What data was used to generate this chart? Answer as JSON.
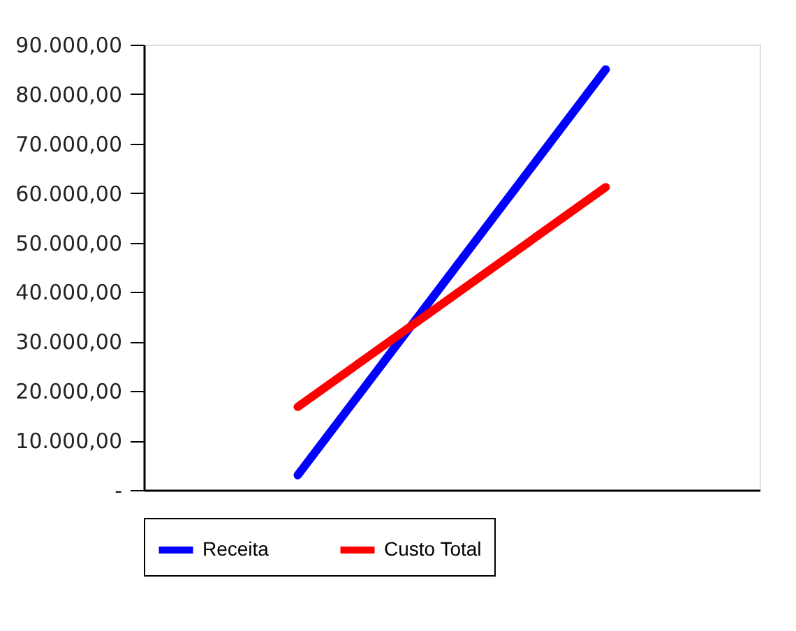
{
  "chart_data": {
    "type": "line",
    "categories": [
      null,
      null
    ],
    "series": [
      {
        "name": "Receita",
        "color": "#0000ff",
        "values": [
          3000,
          85000
        ]
      },
      {
        "name": "Custo Total",
        "color": "#ff0000",
        "values": [
          16800,
          61200
        ]
      }
    ],
    "ylim": [
      0,
      90000
    ],
    "yticks": [
      {
        "value": 0,
        "label": "-"
      },
      {
        "value": 10000,
        "label": "10.000,00"
      },
      {
        "value": 20000,
        "label": "20.000,00"
      },
      {
        "value": 30000,
        "label": "30.000,00"
      },
      {
        "value": 40000,
        "label": "40.000,00"
      },
      {
        "value": 50000,
        "label": "50.000,00"
      },
      {
        "value": 60000,
        "label": "60.000,00"
      },
      {
        "value": 70000,
        "label": "70.000,00"
      },
      {
        "value": 80000,
        "label": "80.000,00"
      },
      {
        "value": 90000,
        "label": "90.000,00"
      }
    ],
    "grid": false,
    "legend": "bottom",
    "marker": "none",
    "line_style": "solid",
    "tick_labels": "y"
  }
}
